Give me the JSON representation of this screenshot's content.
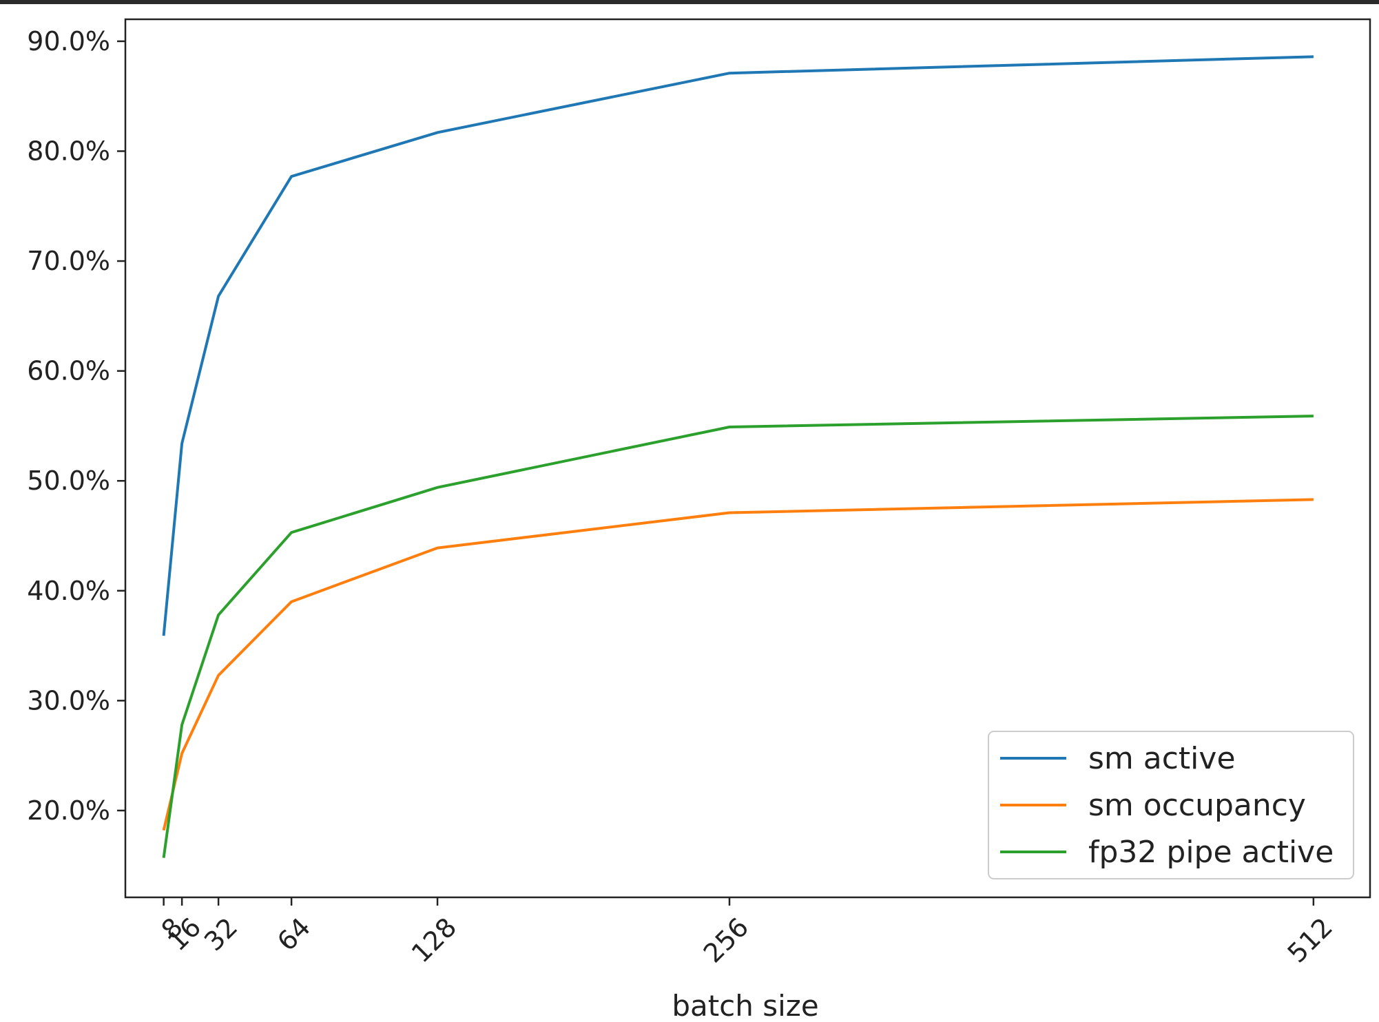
{
  "chart_data": {
    "type": "line",
    "x": [
      8,
      16,
      32,
      64,
      128,
      256,
      512
    ],
    "x_tick_labels": [
      "8",
      "16",
      "32",
      "64",
      "128",
      "256",
      "512"
    ],
    "xlabel": "batch size",
    "ylabel": "",
    "title": "",
    "xlim": [
      -8.8,
      536.8
    ],
    "ylim": [
      12.1,
      92.0
    ],
    "y_ticks": [
      20,
      30,
      40,
      50,
      60,
      70,
      80,
      90
    ],
    "y_tick_labels": [
      "20.0%",
      "30.0%",
      "40.0%",
      "50.0%",
      "60.0%",
      "70.0%",
      "80.0%",
      "90.0%"
    ],
    "grid": false,
    "legend_position": "lower-right",
    "series": [
      {
        "name": "sm active",
        "color": "#1f77b4",
        "values": [
          35.9,
          53.4,
          66.8,
          77.7,
          81.7,
          87.1,
          88.6
        ]
      },
      {
        "name": "sm occupancy",
        "color": "#ff7f0e",
        "values": [
          18.2,
          25.2,
          32.3,
          39.0,
          43.9,
          47.1,
          48.3
        ]
      },
      {
        "name": "fp32 pipe active",
        "color": "#2ca02c",
        "values": [
          15.7,
          27.8,
          37.8,
          45.3,
          49.4,
          54.9,
          55.9
        ]
      }
    ]
  }
}
